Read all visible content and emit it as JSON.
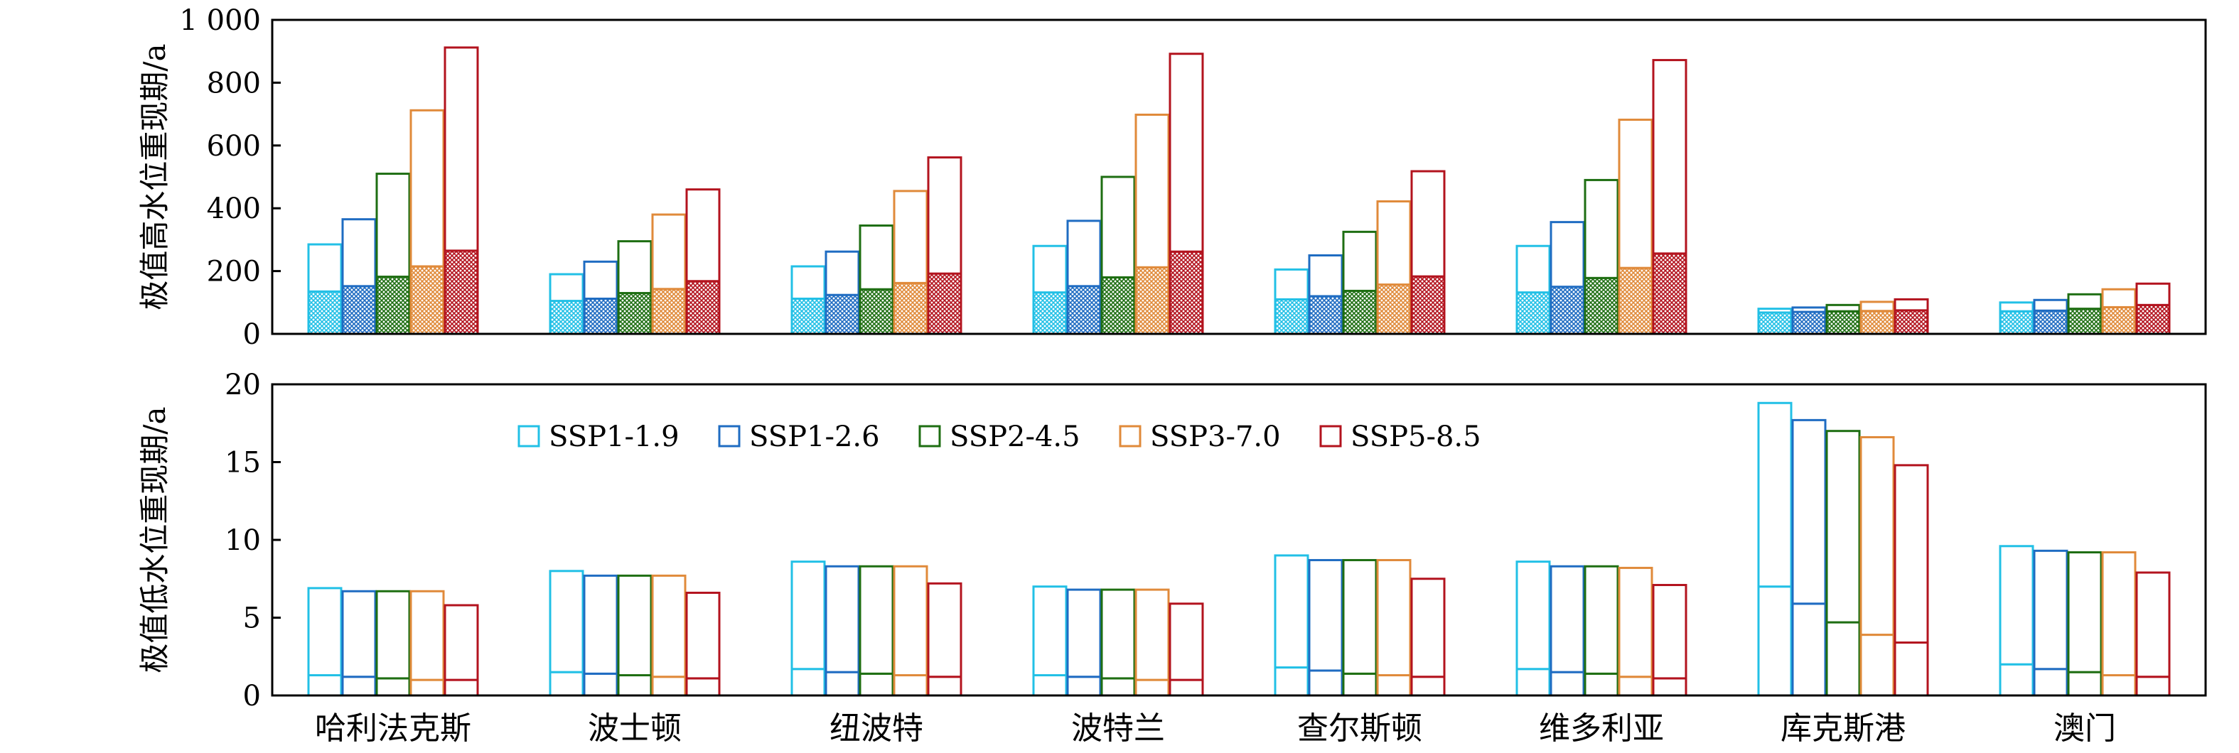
{
  "chart_data": [
    {
      "type": "bar",
      "categories": [
        "哈利法克斯",
        "波士顿",
        "纽波特",
        "波特兰",
        "查尔斯顿",
        "维多利亚",
        "库克斯港",
        "澳门"
      ],
      "ylabel": "极值高水位重现期/a",
      "ylim": [
        0,
        1000
      ],
      "yticks": [
        0,
        200,
        400,
        600,
        800,
        1000
      ],
      "ytick_labels": [
        "0",
        "200",
        "400",
        "600",
        "800",
        "1 000"
      ],
      "lower_segment_style": "hatched",
      "upper_segment_style": "open",
      "series": [
        {
          "name": "SSP1-1.9",
          "values": [
            285,
            190,
            215,
            280,
            205,
            280,
            80,
            100
          ],
          "lower_values": [
            135,
            105,
            112,
            132,
            110,
            132,
            68,
            72
          ]
        },
        {
          "name": "SSP1-2.6",
          "values": [
            365,
            230,
            262,
            360,
            250,
            356,
            84,
            108
          ],
          "lower_values": [
            152,
            112,
            124,
            152,
            120,
            150,
            70,
            74
          ]
        },
        {
          "name": "SSP2-4.5",
          "values": [
            510,
            295,
            345,
            500,
            325,
            490,
            92,
            126
          ],
          "lower_values": [
            182,
            130,
            142,
            180,
            137,
            178,
            72,
            80
          ]
        },
        {
          "name": "SSP3-7.0",
          "values": [
            712,
            380,
            455,
            698,
            422,
            682,
            102,
            142
          ],
          "lower_values": [
            215,
            143,
            162,
            212,
            157,
            210,
            73,
            85
          ]
        },
        {
          "name": "SSP5-8.5",
          "values": [
            912,
            460,
            562,
            892,
            518,
            872,
            110,
            160
          ],
          "lower_values": [
            265,
            168,
            192,
            262,
            183,
            256,
            75,
            92
          ]
        }
      ]
    },
    {
      "type": "bar",
      "categories": [
        "哈利法克斯",
        "波士顿",
        "纽波特",
        "波特兰",
        "查尔斯顿",
        "维多利亚",
        "库克斯港",
        "澳门"
      ],
      "ylabel": "极值低水位重现期/a",
      "ylim": [
        0,
        20
      ],
      "yticks": [
        0,
        5,
        10,
        15,
        20
      ],
      "ytick_labels": [
        "0",
        "5",
        "10",
        "15",
        "20"
      ],
      "lower_segment_style": "open",
      "upper_segment_style": "hatched",
      "legend_position": "upper-left",
      "series": [
        {
          "name": "SSP1-1.9",
          "values": [
            6.9,
            8.0,
            8.6,
            7.0,
            9.0,
            8.6,
            18.8,
            9.6
          ],
          "lower_values": [
            1.3,
            1.5,
            1.7,
            1.3,
            1.8,
            1.7,
            7.0,
            2.0
          ]
        },
        {
          "name": "SSP1-2.6",
          "values": [
            6.7,
            7.7,
            8.3,
            6.8,
            8.7,
            8.3,
            17.7,
            9.3
          ],
          "lower_values": [
            1.2,
            1.4,
            1.5,
            1.2,
            1.6,
            1.5,
            5.9,
            1.7
          ]
        },
        {
          "name": "SSP2-4.5",
          "values": [
            6.7,
            7.7,
            8.3,
            6.8,
            8.7,
            8.3,
            17.0,
            9.2
          ],
          "lower_values": [
            1.1,
            1.3,
            1.4,
            1.1,
            1.4,
            1.4,
            4.7,
            1.5
          ]
        },
        {
          "name": "SSP3-7.0",
          "values": [
            6.7,
            7.7,
            8.3,
            6.8,
            8.7,
            8.2,
            16.6,
            9.2
          ],
          "lower_values": [
            1.0,
            1.2,
            1.3,
            1.0,
            1.3,
            1.2,
            3.9,
            1.3
          ]
        },
        {
          "name": "SSP5-8.5",
          "values": [
            5.8,
            6.6,
            7.2,
            5.9,
            7.5,
            7.1,
            14.8,
            7.9
          ],
          "lower_values": [
            1.0,
            1.1,
            1.2,
            1.0,
            1.2,
            1.1,
            3.4,
            1.2
          ]
        }
      ]
    }
  ],
  "colors": {
    "SSP1-1.9": "#22c0e6",
    "SSP1-2.6": "#1f6cc2",
    "SSP2-4.5": "#1e6e12",
    "SSP3-7.0": "#e08a3a",
    "SSP5-8.5": "#b3131e"
  }
}
